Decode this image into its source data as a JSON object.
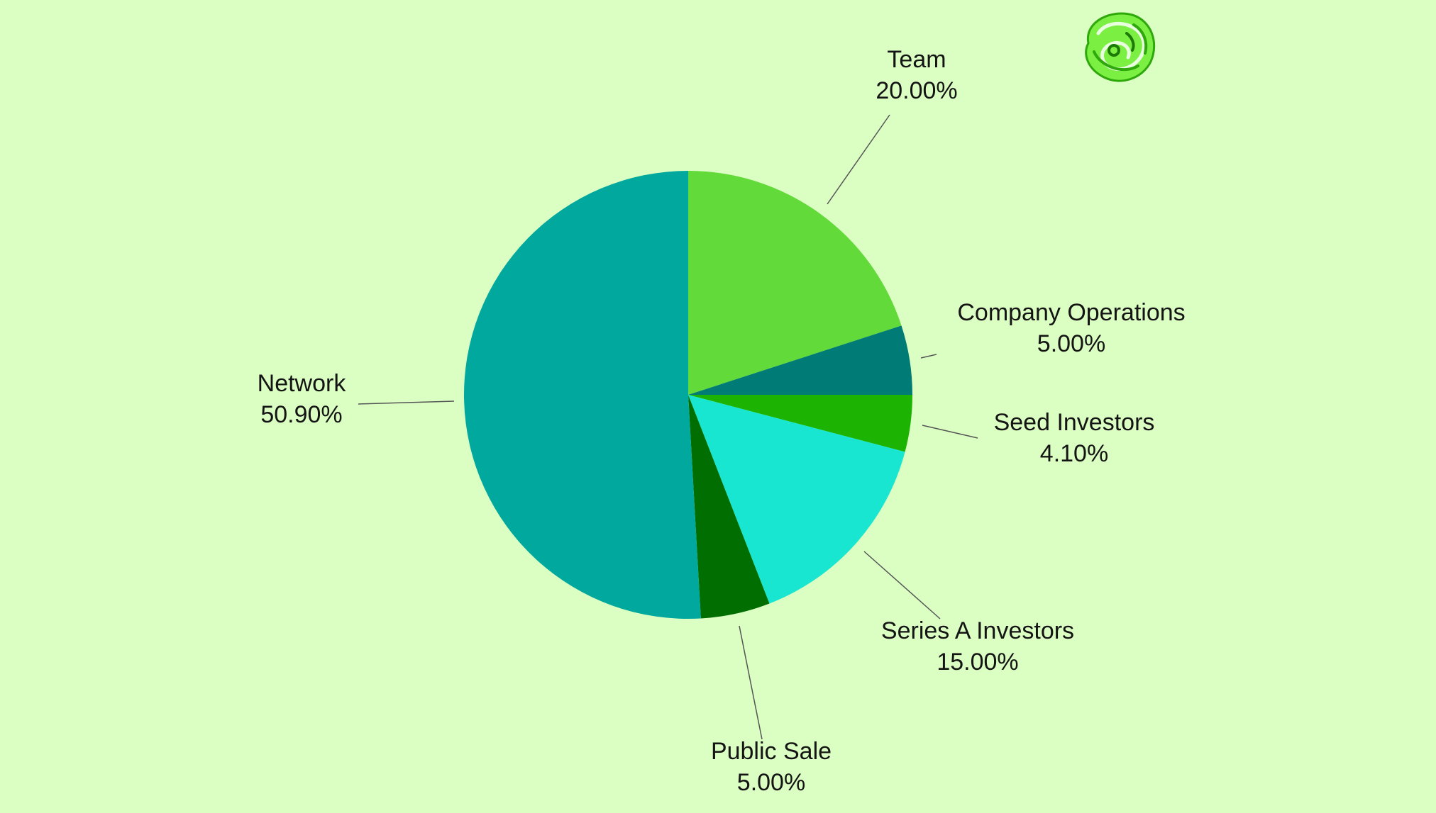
{
  "chart_data": {
    "type": "pie",
    "title": "",
    "start_angle_deg": 0,
    "direction": "clockwise",
    "slices": [
      {
        "label": "Team",
        "value_text": "20.00%",
        "value": 20.0,
        "color": "#62da3a"
      },
      {
        "label": "Company Operations",
        "value_text": "5.00%",
        "value": 5.0,
        "color": "#007b75"
      },
      {
        "label": "Seed Investors",
        "value_text": "4.10%",
        "value": 4.1,
        "color": "#1db303"
      },
      {
        "label": "Series A Investors",
        "value_text": "15.00%",
        "value": 15.0,
        "color": "#18e6d0"
      },
      {
        "label": "Public Sale",
        "value_text": "5.00%",
        "value": 5.0,
        "color": "#006e00"
      },
      {
        "label": "Network",
        "value_text": "50.90%",
        "value": 50.9,
        "color": "#00a89d"
      }
    ],
    "legend": "none",
    "labels": "outside-with-leader-lines"
  },
  "logo": {
    "icon": "green-swirl-logo-icon",
    "color": "#6be83a"
  }
}
